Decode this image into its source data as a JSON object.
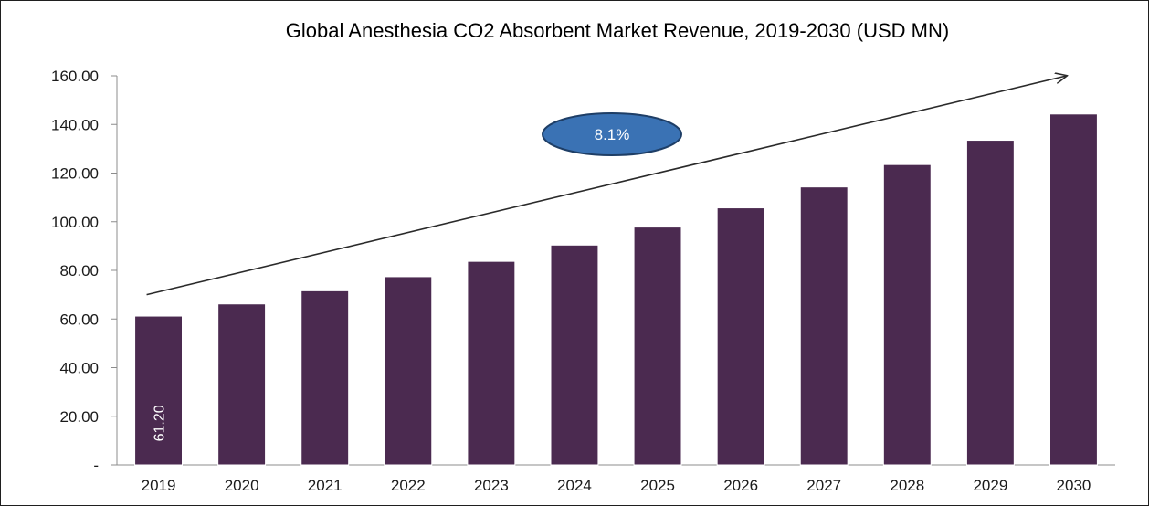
{
  "chart_data": {
    "type": "bar",
    "title": "Global Anesthesia CO2 Absorbent Market Revenue, 2019-2030 (USD MN)",
    "categories": [
      "2019",
      "2020",
      "2021",
      "2022",
      "2023",
      "2024",
      "2025",
      "2026",
      "2027",
      "2028",
      "2029",
      "2030"
    ],
    "values": [
      61.2,
      66.2,
      71.6,
      77.4,
      83.7,
      90.4,
      97.8,
      105.7,
      114.3,
      123.5,
      133.5,
      144.3
    ],
    "ylim": [
      0,
      160
    ],
    "yticks": [
      0,
      20,
      40,
      60,
      80,
      100,
      120,
      140,
      160
    ],
    "ytick_labels": [
      "-",
      "20.00",
      "40.00",
      "60.00",
      "80.00",
      "100.00",
      "120.00",
      "140.00",
      "160.00"
    ],
    "data_labels": [
      {
        "index": 0,
        "text": "61.20"
      }
    ],
    "annotation": {
      "text": "8.1%"
    },
    "trend_arrow": {
      "from": {
        "x": "2019",
        "y": 70
      },
      "to": {
        "x": "2030",
        "y": 160
      }
    },
    "grid": false,
    "legend": "none",
    "colors": {
      "bar": "#4b2a50",
      "bubble_fill": "#3a72b4",
      "bubble_stroke": "#1e3e66",
      "arrow": "#2a2a2a"
    }
  }
}
